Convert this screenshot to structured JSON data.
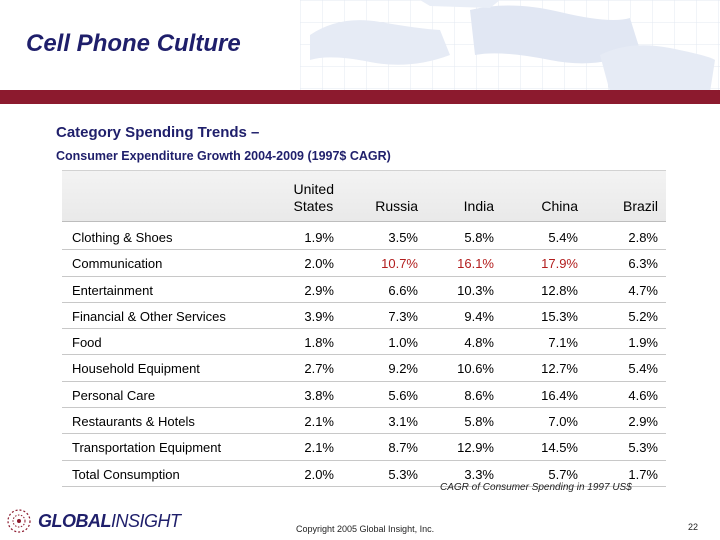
{
  "title": "Cell Phone Culture",
  "section_title": "Category Spending Trends –",
  "section_subtitle": "Consumer Expenditure Growth 2004-2009 (1997$ CAGR)",
  "columns": [
    {
      "line1": "United",
      "line2": "States"
    },
    {
      "line1": "",
      "line2": "Russia"
    },
    {
      "line1": "",
      "line2": "India"
    },
    {
      "line1": "",
      "line2": "China"
    },
    {
      "line1": "",
      "line2": "Brazil"
    }
  ],
  "rows": [
    {
      "label": "Clothing & Shoes",
      "values": [
        "1.9%",
        "3.5%",
        "5.8%",
        "5.4%",
        "2.8%"
      ]
    },
    {
      "label": "Communication",
      "values": [
        "2.0%",
        "10.7%",
        "16.1%",
        "17.9%",
        "6.3%"
      ]
    },
    {
      "label": "Entertainment",
      "values": [
        "2.9%",
        "6.6%",
        "10.3%",
        "12.8%",
        "4.7%"
      ]
    },
    {
      "label": "Financial & Other Services",
      "values": [
        "3.9%",
        "7.3%",
        "9.4%",
        "15.3%",
        "5.2%"
      ]
    },
    {
      "label": "Food",
      "values": [
        "1.8%",
        "1.0%",
        "4.8%",
        "7.1%",
        "1.9%"
      ]
    },
    {
      "label": "Household Equipment",
      "values": [
        "2.7%",
        "9.2%",
        "10.6%",
        "12.7%",
        "5.4%"
      ]
    },
    {
      "label": "Personal Care",
      "values": [
        "3.8%",
        "5.6%",
        "8.6%",
        "16.4%",
        "4.6%"
      ]
    },
    {
      "label": "Restaurants & Hotels",
      "values": [
        "2.1%",
        "3.1%",
        "5.8%",
        "7.0%",
        "2.9%"
      ]
    },
    {
      "label": "Transportation Equipment",
      "values": [
        "2.1%",
        "8.7%",
        "12.9%",
        "14.5%",
        "5.3%"
      ]
    },
    {
      "label": "Total Consumption",
      "values": [
        "2.0%",
        "5.3%",
        "3.3%",
        "5.7%",
        "1.7%"
      ]
    }
  ],
  "highlight": {
    "row": "Communication",
    "columns": [
      "Russia",
      "India",
      "China"
    ],
    "color": "#b21d1d"
  },
  "caption": "CAGR of Consumer Spending in 1997 US$",
  "logo": {
    "bold": "GLOBAL",
    "thin": "INSIGHT"
  },
  "copyright": "Copyright 2005 Global Insight, Inc.",
  "page_number": "22"
}
